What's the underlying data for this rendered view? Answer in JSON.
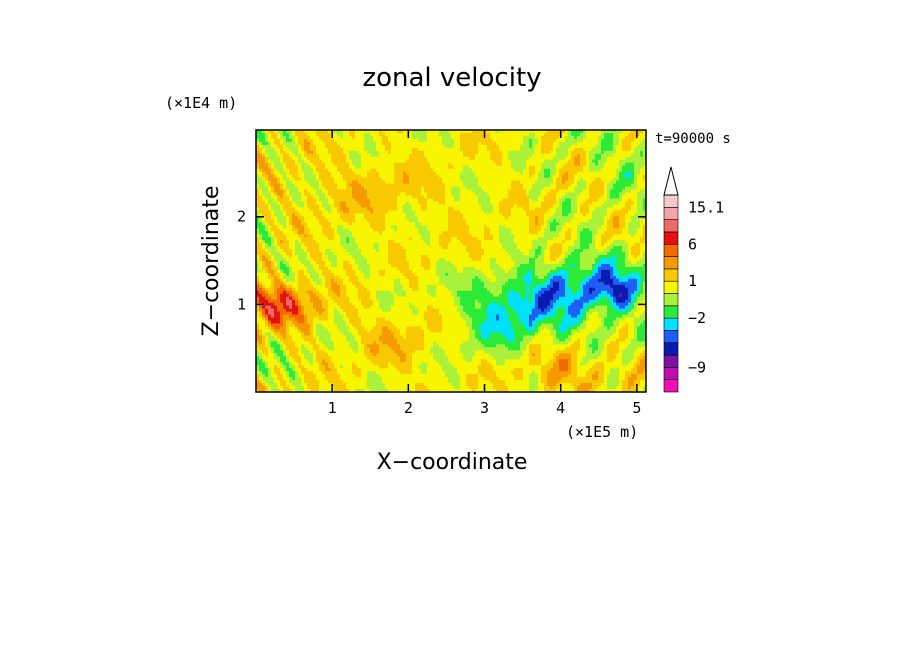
{
  "chart_data": {
    "type": "heatmap",
    "title": "zonal velocity",
    "xlabel": "X−coordinate",
    "ylabel": "Z−coordinate",
    "x_scale_label": "(×1E5 m)",
    "y_scale_label": "(×1E4 m)",
    "time_label": "t=90000 s",
    "xlim": [
      0,
      5.12
    ],
    "ylim": [
      0,
      2.99
    ],
    "x_ticks": [
      {
        "value": 1,
        "label": "1"
      },
      {
        "value": 2,
        "label": "2"
      },
      {
        "value": 3,
        "label": "3"
      },
      {
        "value": 4,
        "label": "4"
      },
      {
        "value": 5,
        "label": "5"
      }
    ],
    "y_ticks": [
      {
        "value": 1,
        "label": "1"
      },
      {
        "value": 2,
        "label": "2"
      }
    ],
    "colorbar": {
      "colors": [
        "#f20fb4",
        "#c010b0",
        "#7a12a8",
        "#0b1bb0",
        "#1f5ef5",
        "#00e0ff",
        "#2aea3a",
        "#aaf23a",
        "#f8f500",
        "#f8c800",
        "#f59a00",
        "#f26a00",
        "#e51010",
        "#f06868",
        "#f2a6a6",
        "#f6c9c9"
      ],
      "tick_labels": [
        {
          "label": "15.1",
          "level": 15
        },
        {
          "label": "6",
          "level": 12
        },
        {
          "label": "1",
          "level": 9
        },
        {
          "label": "−2",
          "level": 6
        },
        {
          "label": "−9",
          "level": 2
        }
      ],
      "extend_max": true
    }
  }
}
